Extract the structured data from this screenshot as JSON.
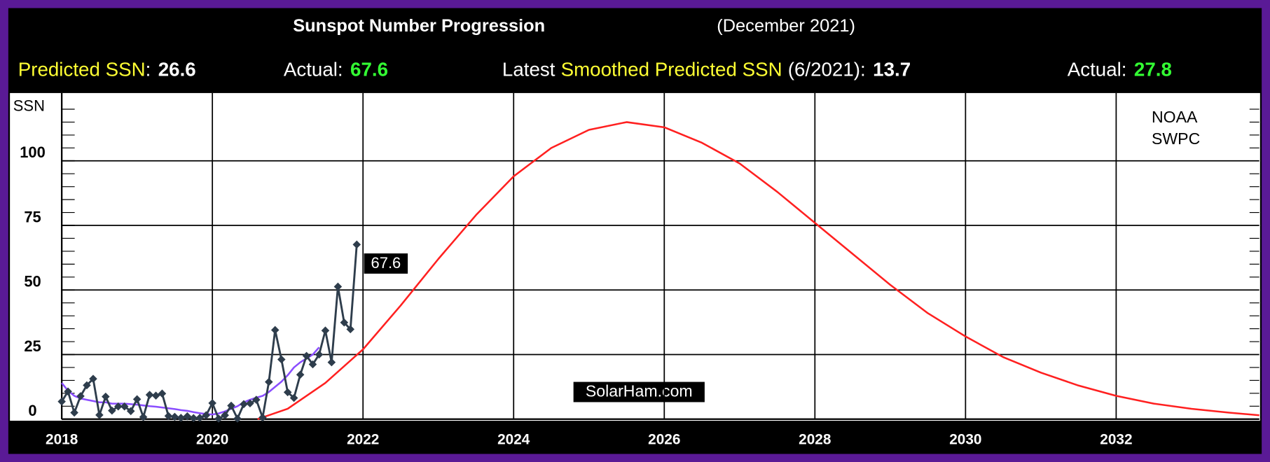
{
  "chart_data": {
    "type": "line",
    "title": "Sunspot Number Progression",
    "subtitle": "(December 2021)",
    "header_stats": [
      {
        "parts": [
          {
            "text": "Predicted SSN",
            "color": "#ffff33"
          },
          {
            "text": ":",
            "color": "#ffffff"
          }
        ],
        "value": 26.6,
        "value_color": "#ffffff"
      },
      {
        "parts": [
          {
            "text": "Actual:",
            "color": "#ffffff"
          }
        ],
        "value": 67.6,
        "value_color": "#33ff33"
      },
      {
        "parts": [
          {
            "text": "Latest",
            "color": "#ffffff"
          },
          {
            "text": "Smoothed Predicted SSN",
            "color": "#ffff33"
          },
          {
            "text": "(6/2021):",
            "color": "#ffffff"
          }
        ],
        "value": 13.7,
        "value_color": "#ffffff"
      },
      {
        "parts": [
          {
            "text": "Actual:",
            "color": "#ffffff"
          }
        ],
        "value": 27.8,
        "value_color": "#33ff33"
      }
    ],
    "y_label": "SSN",
    "annotations": [
      "NOAA",
      "SWPC",
      "SolarHam.com"
    ],
    "xlim": [
      2018,
      2033.9
    ],
    "xticks": [
      2018,
      2020,
      2022,
      2024,
      2026,
      2028,
      2030,
      2032
    ],
    "ylim": [
      0,
      125
    ],
    "yticks": [
      0,
      25,
      50,
      75,
      100
    ],
    "yminorticks": [
      5,
      10,
      15,
      20,
      30,
      35,
      40,
      45,
      55,
      60,
      65,
      70,
      80,
      85,
      90,
      95,
      105,
      110,
      115,
      120
    ],
    "grid": true,
    "series": [
      {
        "name": "Actual SSN",
        "color": "#2e3d4c",
        "markers": true,
        "x": [
          2018.0,
          2018.083,
          2018.167,
          2018.25,
          2018.333,
          2018.417,
          2018.5,
          2018.583,
          2018.667,
          2018.75,
          2018.833,
          2018.917,
          2019.0,
          2019.083,
          2019.167,
          2019.25,
          2019.333,
          2019.417,
          2019.5,
          2019.583,
          2019.667,
          2019.75,
          2019.833,
          2019.917,
          2020.0,
          2020.083,
          2020.167,
          2020.25,
          2020.333,
          2020.417,
          2020.5,
          2020.583,
          2020.667,
          2020.75,
          2020.833,
          2020.917,
          2021.0,
          2021.083,
          2021.167,
          2021.25,
          2021.333,
          2021.417,
          2021.5,
          2021.583,
          2021.667,
          2021.75,
          2021.833,
          2021.917
        ],
        "values": [
          6.8,
          10.7,
          2.5,
          8.9,
          13.1,
          15.6,
          1.6,
          8.7,
          3.3,
          4.9,
          4.9,
          3.1,
          7.7,
          0.8,
          9.4,
          9.1,
          9.9,
          1.2,
          0.9,
          0.5,
          1.1,
          0.4,
          0.5,
          1.5,
          6.2,
          0.2,
          1.5,
          5.2,
          0.2,
          5.8,
          6.1,
          7.5,
          0.6,
          14.4,
          34.5,
          23.1,
          10.4,
          8.2,
          17.2,
          24.5,
          21.2,
          25.0,
          34.3,
          22.0,
          51.3,
          37.4,
          34.8,
          67.6
        ]
      },
      {
        "name": "Smoothed SSN",
        "color": "#8a4dff",
        "markers": false,
        "x": [
          2018.0,
          2018.083,
          2018.167,
          2018.25,
          2018.333,
          2018.417,
          2018.5,
          2018.583,
          2018.667,
          2018.75,
          2018.833,
          2018.917,
          2019.0,
          2019.083,
          2019.167,
          2019.25,
          2019.333,
          2019.417,
          2019.5,
          2019.583,
          2019.667,
          2019.75,
          2019.833,
          2019.917,
          2020.0,
          2020.083,
          2020.167,
          2020.25,
          2020.333,
          2020.417,
          2020.5,
          2020.583,
          2020.667,
          2020.75,
          2020.833,
          2020.917,
          2021.0,
          2021.083,
          2021.167,
          2021.25,
          2021.333,
          2021.417
        ],
        "values": [
          14,
          11,
          9,
          8,
          7.5,
          7,
          6.5,
          6.5,
          6,
          6,
          6,
          5.8,
          5.6,
          5.3,
          5,
          4.8,
          4.5,
          4.2,
          3.9,
          3.5,
          3.2,
          2.7,
          2.3,
          2,
          1.8,
          2.2,
          3,
          4,
          5,
          6.5,
          7.5,
          8.3,
          9,
          10.5,
          12.5,
          14.5,
          17,
          20,
          22,
          23.5,
          25,
          27.8
        ]
      },
      {
        "name": "Predicted SSN",
        "color": "#ff2020",
        "markers": false,
        "x": [
          2020.6,
          2021,
          2021.5,
          2022,
          2022.5,
          2023,
          2023.5,
          2024,
          2024.5,
          2025,
          2025.5,
          2026,
          2026.5,
          2027,
          2027.5,
          2028,
          2028.5,
          2029,
          2029.5,
          2030,
          2030.5,
          2031,
          2031.5,
          2032,
          2032.5,
          2033,
          2033.5,
          2033.9
        ],
        "values": [
          0,
          4,
          14,
          27,
          44,
          62,
          79,
          94,
          105,
          112,
          115,
          113,
          107,
          99,
          88,
          76,
          64,
          52,
          41,
          32,
          24,
          18,
          13,
          9,
          6,
          4,
          2.5,
          1.5
        ]
      }
    ]
  }
}
